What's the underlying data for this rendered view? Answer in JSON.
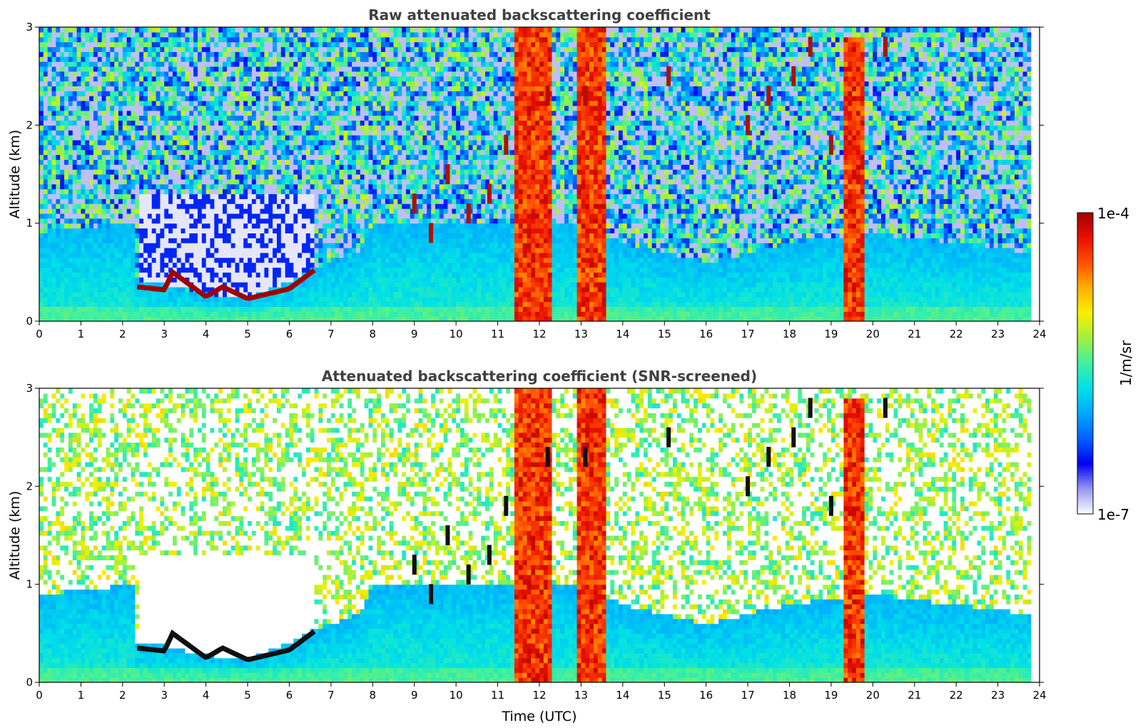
{
  "colormap": {
    "stops": [
      "#ffffff",
      "#9595f0",
      "#0000f0",
      "#0060ff",
      "#00a8ff",
      "#00e0e8",
      "#40f0a0",
      "#a0f040",
      "#f8f000",
      "#ffb000",
      "#ff5000",
      "#e81000",
      "#a00000"
    ],
    "label": "1/m/sr",
    "max_label": "1e-4",
    "min_label": "1e-7"
  },
  "chart_data": [
    {
      "type": "heatmap",
      "title": "Raw attenuated backscattering coefficient",
      "xlabel": "",
      "ylabel": "Altitude (km)",
      "xlim": [
        0,
        24
      ],
      "ylim": [
        0,
        3
      ],
      "xticks": [
        "0",
        "1",
        "2",
        "3",
        "4",
        "5",
        "6",
        "7",
        "8",
        "9",
        "10",
        "11",
        "12",
        "13",
        "14",
        "15",
        "16",
        "17",
        "18",
        "19",
        "20",
        "21",
        "22",
        "23",
        "24"
      ],
      "yticks": [
        "0",
        "1",
        "2",
        "3"
      ],
      "log_color_scale": true,
      "color_range": [
        "1e-7",
        "1e-4"
      ],
      "features": {
        "boundary_layer_top_km": [
          [
            0,
            0.9
          ],
          [
            2.3,
            1.0
          ],
          [
            2.35,
            0.4
          ],
          [
            3,
            0.38
          ],
          [
            4,
            0.28
          ],
          [
            5,
            0.25
          ],
          [
            6,
            0.4
          ],
          [
            6.6,
            0.55
          ],
          [
            7.7,
            0.7
          ],
          [
            8,
            1.0
          ],
          [
            10,
            1.0
          ],
          [
            11,
            1.0
          ],
          [
            13,
            1.0
          ],
          [
            14,
            0.8
          ],
          [
            16,
            0.6
          ],
          [
            18,
            0.8
          ],
          [
            20,
            0.9
          ],
          [
            23.8,
            0.7
          ]
        ],
        "low_cloud_layer": {
          "from_h": 2.35,
          "to_h": 6.6,
          "altitude_km": [
            [
              2.35,
              0.35
            ],
            [
              3,
              0.32
            ],
            [
              3.2,
              0.5
            ],
            [
              4,
              0.25
            ],
            [
              4.4,
              0.35
            ],
            [
              5,
              0.23
            ],
            [
              6,
              0.33
            ],
            [
              6.6,
              0.52
            ]
          ]
        },
        "dense_columns_h": [
          [
            11.45,
            12.3
          ],
          [
            12.9,
            13.55
          ],
          [
            19.35,
            19.75
          ]
        ],
        "elevated_cloud_segments": [
          [
            9.0,
            1.2
          ],
          [
            9.4,
            0.9
          ],
          [
            9.8,
            1.5
          ],
          [
            10.3,
            1.1
          ],
          [
            10.8,
            1.3
          ],
          [
            11.2,
            1.8
          ],
          [
            12.2,
            2.3
          ],
          [
            13.1,
            2.3
          ],
          [
            15.1,
            2.5
          ],
          [
            17.0,
            2.0
          ],
          [
            17.5,
            2.3
          ],
          [
            18.1,
            2.5
          ],
          [
            18.5,
            2.8
          ],
          [
            19.0,
            1.8
          ],
          [
            20.3,
            2.8
          ]
        ]
      }
    },
    {
      "type": "heatmap",
      "title": "Attenuated backscattering coefficient (SNR-screened)",
      "xlabel": "Time (UTC)",
      "ylabel": "Altitude (km)",
      "xlim": [
        0,
        24
      ],
      "ylim": [
        0,
        3
      ],
      "xticks": [
        "0",
        "1",
        "2",
        "3",
        "4",
        "5",
        "6",
        "7",
        "8",
        "9",
        "10",
        "11",
        "12",
        "13",
        "14",
        "15",
        "16",
        "17",
        "18",
        "19",
        "20",
        "21",
        "22",
        "23",
        "24"
      ],
      "yticks": [
        "0",
        "1",
        "2",
        "3"
      ],
      "log_color_scale": true,
      "color_range": [
        "1e-7",
        "1e-4"
      ]
    }
  ]
}
